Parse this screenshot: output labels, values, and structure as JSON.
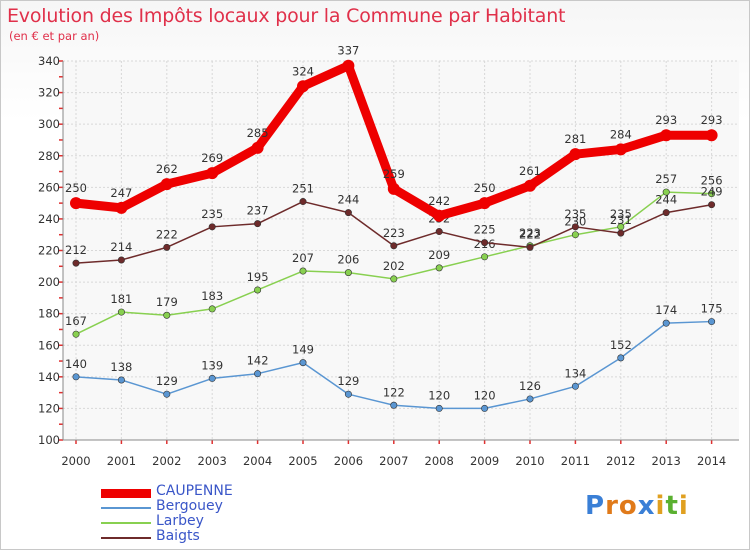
{
  "title": "Evolution des Impôts locaux pour la Commune par Habitant",
  "subtitle": "(en € et par an)",
  "logo": {
    "letters": [
      "P",
      "r",
      "o",
      "x",
      "i",
      "t",
      "i"
    ],
    "colors": [
      "#3a7fd6",
      "#e07a1a",
      "#e07a1a",
      "#3a7fd6",
      "#e0a020",
      "#5ab030",
      "#e0a020"
    ]
  },
  "chart_data": {
    "type": "line",
    "title": "Evolution des Impôts locaux pour la Commune par Habitant",
    "ylabel": "(en € et par an)",
    "xlabel": "",
    "categories": [
      "2000",
      "2001",
      "2002",
      "2003",
      "2004",
      "2005",
      "2006",
      "2007",
      "2008",
      "2009",
      "2010",
      "2011",
      "2012",
      "2013",
      "2014"
    ],
    "ylim": [
      100,
      340
    ],
    "yticks": [
      100,
      120,
      140,
      160,
      180,
      200,
      220,
      240,
      260,
      280,
      300,
      320,
      340
    ],
    "grid": true,
    "legend_position": "bottom-left",
    "series": [
      {
        "name": "CAUPENNE",
        "color": "#ee0000",
        "values": [
          250,
          247,
          262,
          269,
          285,
          324,
          337,
          259,
          242,
          250,
          261,
          281,
          284,
          293,
          293
        ],
        "labels": [
          "250",
          "247",
          "262",
          "269",
          "285",
          "324",
          "337",
          "259",
          "242",
          "250",
          "261",
          "281",
          "284",
          "293",
          "293"
        ]
      },
      {
        "name": "Bergouey",
        "color": "#5a96d2",
        "values": [
          140,
          138,
          129,
          139,
          142,
          149,
          129,
          122,
          120,
          120,
          126,
          134,
          152,
          174,
          175
        ],
        "labels": [
          "140",
          "138",
          "129",
          "139",
          "142",
          "149",
          "129",
          "122",
          "120",
          "120",
          "126",
          "134",
          "152",
          "174",
          "175"
        ]
      },
      {
        "name": "Larbey",
        "color": "#88d050",
        "values": [
          167,
          181,
          179,
          183,
          195,
          207,
          206,
          202,
          209,
          216,
          223,
          230,
          235,
          257,
          256
        ],
        "labels": [
          "167",
          "181",
          "179",
          "183",
          "195",
          "207",
          "206",
          "202",
          "209",
          "216",
          "223",
          "230",
          "235",
          "257",
          "256"
        ]
      },
      {
        "name": "Baigts",
        "color": "#6e2b2b",
        "values": [
          212,
          214,
          222,
          235,
          237,
          251,
          244,
          223,
          232,
          225,
          222,
          235,
          231,
          244,
          249
        ],
        "labels": [
          "212",
          "214",
          "222",
          "235",
          "237",
          "251",
          "244",
          "223",
          "232",
          "225",
          "222",
          "235",
          "231",
          "244",
          "249"
        ]
      }
    ]
  }
}
